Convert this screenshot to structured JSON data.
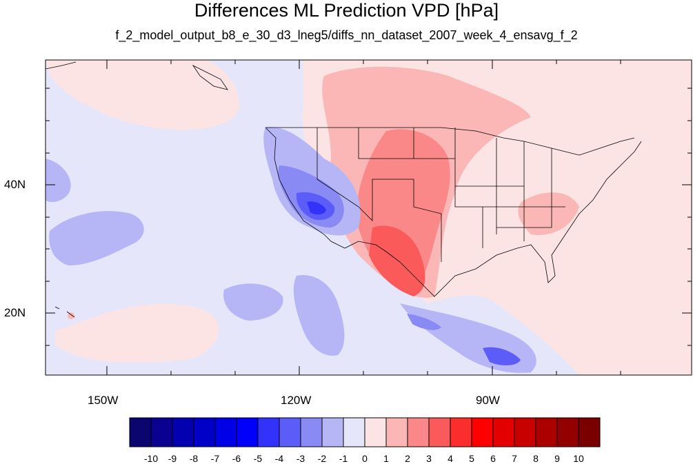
{
  "title": "Differences ML Prediction VPD [hPa]",
  "subtitle": "f_2_model_output_b8_e_30_d3_lneg5/diffs_nn_dataset_2007_week_4_ensavg_f_2",
  "lat_labels": [
    "40N",
    "20N"
  ],
  "lon_labels": [
    "150W",
    "120W",
    "90W"
  ],
  "colorbar": {
    "labels": [
      "-10",
      "-9",
      "-8",
      "-7",
      "-6",
      "-5",
      "-4",
      "-3",
      "-2",
      "-1",
      "0",
      "1",
      "2",
      "3",
      "4",
      "5",
      "6",
      "7",
      "8",
      "9",
      "10"
    ],
    "colors": [
      "#0b0570",
      "#0a0190",
      "#0300b0",
      "#0000c9",
      "#0000e6",
      "#0000fb",
      "#3232fb",
      "#5c5cf8",
      "#8a8af5",
      "#b6b6f7",
      "#e6e6fb",
      "#fde4e4",
      "#fbb6b6",
      "#fb8888",
      "#fb5a5a",
      "#fb2d2d",
      "#fe0000",
      "#e50000",
      "#c90000",
      "#ac0000",
      "#920000",
      "#7a0000"
    ]
  },
  "map": {
    "background": "#e6e6fb",
    "lon_range": [
      -161,
      -62
    ],
    "lat_range": [
      10.5,
      59
    ]
  }
}
